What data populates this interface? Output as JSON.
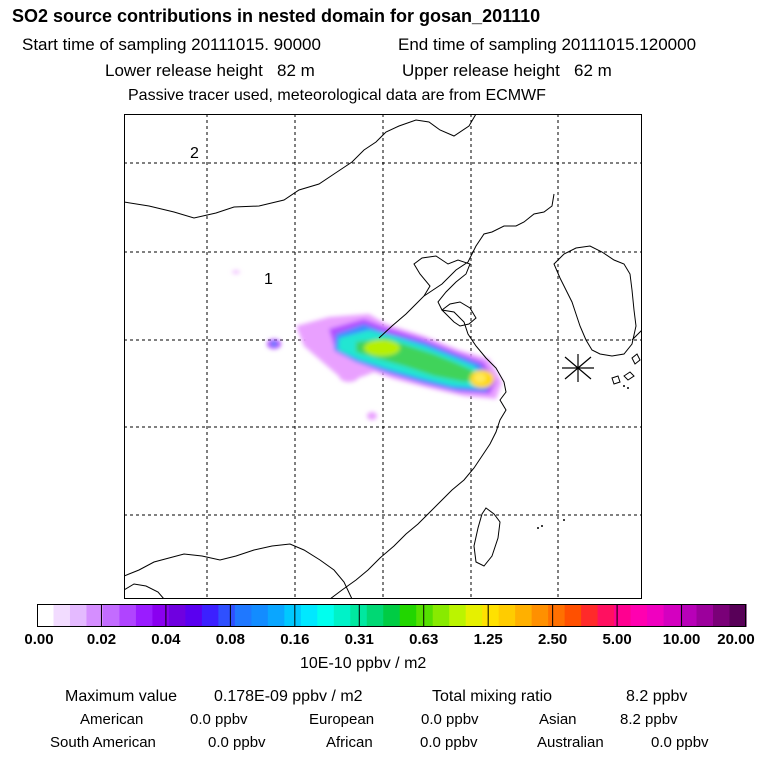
{
  "header": {
    "title": "SO2 source contributions in nested domain for gosan_201110",
    "start_time": "Start time of sampling 20111015. 90000",
    "end_time": "End time of sampling 20111015.120000",
    "lower_height": "Lower release height   82 m",
    "upper_height": "Upper release height   62 m",
    "tracer_note": "Passive tracer used, meteorological data are from ECMWF"
  },
  "map": {
    "region_labels": [
      "1",
      "2"
    ],
    "receptor_marker": "asterisk-icon",
    "plume_colors": [
      "#ff00ff",
      "#9b30ff",
      "#1e90ff",
      "#00e5cc",
      "#33cc33",
      "#c6f000",
      "#ffd700"
    ]
  },
  "colorbar": {
    "ticks": [
      "0.00",
      "0.02",
      "0.04",
      "0.08",
      "0.16",
      "0.31",
      "0.63",
      "1.25",
      "2.50",
      "5.00",
      "10.00",
      "20.00"
    ],
    "unit": "10E-10 ppbv / m2",
    "colors": [
      "#ffffff",
      "#f2dcff",
      "#e4baff",
      "#d58eff",
      "#c36cff",
      "#b044ff",
      "#9a1cff",
      "#8a00f0",
      "#6f00e0",
      "#5a00f0",
      "#3c20ff",
      "#2f50ff",
      "#1f78ff",
      "#138cff",
      "#0aa6ff",
      "#00c8ff",
      "#00e8ff",
      "#00ffee",
      "#00f2c8",
      "#00e8a0",
      "#00d874",
      "#00cc44",
      "#22d600",
      "#55e000",
      "#88ea00",
      "#bbf400",
      "#e6f000",
      "#ffe100",
      "#ffcc00",
      "#ffb000",
      "#ff9000",
      "#ff7000",
      "#ff5000",
      "#ff2a2a",
      "#ff1060",
      "#ff0090",
      "#ff00b0",
      "#f000c0",
      "#d400c0",
      "#b800b8",
      "#9c009c",
      "#7a0078",
      "#580058"
    ]
  },
  "stats": {
    "max_label": "Maximum value",
    "max_value": "0.178E-09 ppbv / m2",
    "total_label": "Total mixing ratio",
    "total_value": "8.2 ppbv",
    "regions": [
      {
        "name": "American",
        "value": "0.0 ppbv"
      },
      {
        "name": "European",
        "value": "0.0 ppbv"
      },
      {
        "name": "Asian",
        "value": "8.2 ppbv"
      },
      {
        "name": "South American",
        "value": "0.0 ppbv"
      },
      {
        "name": "African",
        "value": "0.0 ppbv"
      },
      {
        "name": "Australian",
        "value": "0.0 ppbv"
      }
    ]
  }
}
